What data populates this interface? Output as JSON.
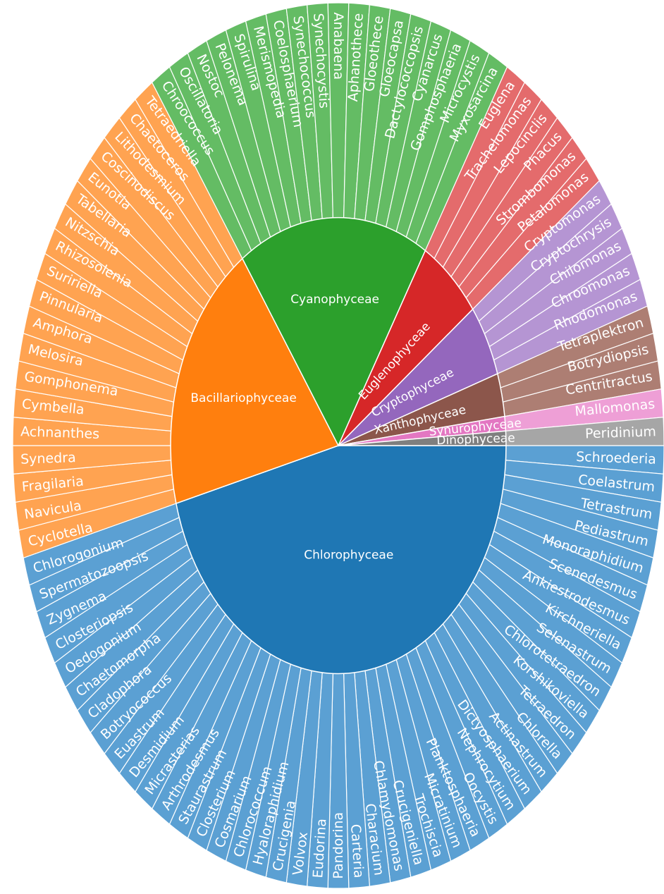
{
  "chart_data": {
    "type": "sunburst",
    "direction": "clockwise",
    "groups": [
      {
        "name": "Chlorophyceae",
        "color": "#1f77b4",
        "leaf_color": "#5ba0d3",
        "children": [
          "Schroederia",
          "Coelastrum",
          "Tetrastrum",
          "Pediastrum",
          "Monoraphidium",
          "Scenedesmus",
          "Ankiestrodesmus",
          "Kirchneriella",
          "Selenastrum",
          "Chlorotetraedron",
          "Korshikoviella",
          "Tetraedron",
          "Chlorella",
          "Actinastrum",
          "Dictyosphaerium",
          "Nephrocytium",
          "Oocystis",
          "Planktosphaeria",
          "Micratinium",
          "Trochiscia",
          "Crucigeniella",
          "Chlamydomonas",
          "Characium",
          "Carteria",
          "Pandorina",
          "Eudorina",
          "Volvox",
          "Crucigenia",
          "Hyaloraphidium",
          "Chlorococcum",
          "Cosmarium",
          "Closterium",
          "Staurastrum",
          "Arthrodesmus",
          "Micrasterias",
          "Desmidium",
          "Euastrum",
          "Botryococcus",
          "Cladophora",
          "Chaetomorpha",
          "Oedogonium",
          "Closteriopsis",
          "Zygnema",
          "Spermatozoopsis",
          "Chlorogonium"
        ]
      },
      {
        "name": "Bacillariophyceae",
        "color": "#ff7f0e",
        "leaf_color": "#ffa351",
        "children": [
          "Cyclotella",
          "Navicula",
          "Fragilaria",
          "Synedra",
          "Achnanthes",
          "Cymbella",
          "Gomphonema",
          "Melosira",
          "Amphora",
          "Pinnularia",
          "Suririella",
          "Rhizosolenia",
          "Nitzschia",
          "Tabellaria",
          "Eunotia",
          "Coscinodiscus",
          "Lithodesmium",
          "Chaetoceros",
          "Tetraedriella"
        ]
      },
      {
        "name": "Cyanophyceae",
        "color": "#2ca02c",
        "leaf_color": "#64bc64",
        "children": [
          "Chroococcus",
          "Oscillatoria",
          "Nostoc",
          "Pelonema",
          "Spirulina",
          "Merismopedia",
          "Coelosphaerium",
          "Synechococcus",
          "Synechocystis",
          "Anabaena",
          "Aphanothece",
          "Gloeothece",
          "Gloeocapsa",
          "Dactylococcopsis",
          "Cyanarcus",
          "Gomphosphaeria",
          "Microcystis",
          "Myxosarcina"
        ]
      },
      {
        "name": "Euglenophyceae",
        "color": "#d62728",
        "leaf_color": "#e46b6c",
        "children": [
          "Euglena",
          "Trachelomonas",
          "Lepocinclis",
          "Phacus",
          "Strombomonas",
          "Petalomonas"
        ]
      },
      {
        "name": "Cryptophyceae",
        "color": "#9467bd",
        "leaf_color": "#b595d3",
        "children": [
          "Cryptomonas",
          "Cryptochrysis",
          "Chilomonas",
          "Chroomonas",
          "Rhodomonas"
        ]
      },
      {
        "name": "Xanthophyceae",
        "color": "#8c564b",
        "leaf_color": "#ad7e73",
        "children": [
          "Tetraplektron",
          "Botrydiopsis",
          "Centritractus"
        ]
      },
      {
        "name": "Synurophyceae",
        "color": "#e377c2",
        "leaf_color": "#ee9fd6",
        "children": [
          "Mallomonas"
        ]
      },
      {
        "name": "Dinophyceae",
        "color": "#7f7f7f",
        "leaf_color": "#a6a6a6",
        "children": [
          "Peridinium"
        ]
      }
    ]
  }
}
